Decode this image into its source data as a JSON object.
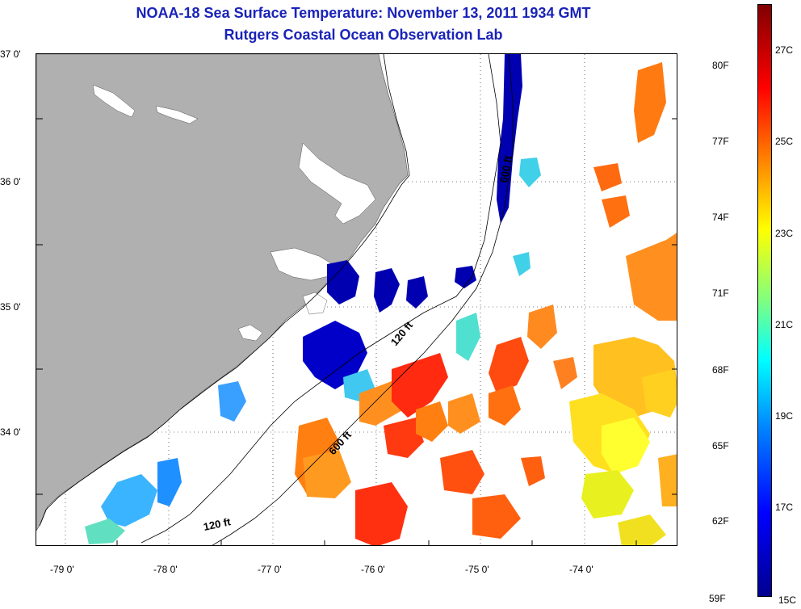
{
  "title": {
    "line1": "NOAA-18 Sea Surface Temperature:  November 13, 2011 1934 GMT",
    "line2": "Rutgers Coastal Ocean Observation Lab"
  },
  "map": {
    "lat_labels": [
      "37 0'",
      "36 0'",
      "35 0'",
      "34 0'"
    ],
    "lon_labels": [
      "-79 0'",
      "-78 0'",
      "-77 0'",
      "-76 0'",
      "-75 0'",
      "-74 0'"
    ],
    "contour_labels": [
      "600 ft",
      "120 ft",
      "600 ft",
      "120 ft"
    ]
  },
  "colorbar": {
    "fahrenheit": [
      "80F",
      "77F",
      "74F",
      "71F",
      "68F",
      "65F",
      "62F",
      "59F"
    ],
    "celsius": [
      "27C",
      "25C",
      "23C",
      "21C",
      "19C",
      "17C",
      "15C"
    ],
    "colors": [
      "#00008f",
      "#0000ff",
      "#0080ff",
      "#00ffff",
      "#80ff80",
      "#ffff00",
      "#ff8000",
      "#ff0000",
      "#800000"
    ]
  }
}
